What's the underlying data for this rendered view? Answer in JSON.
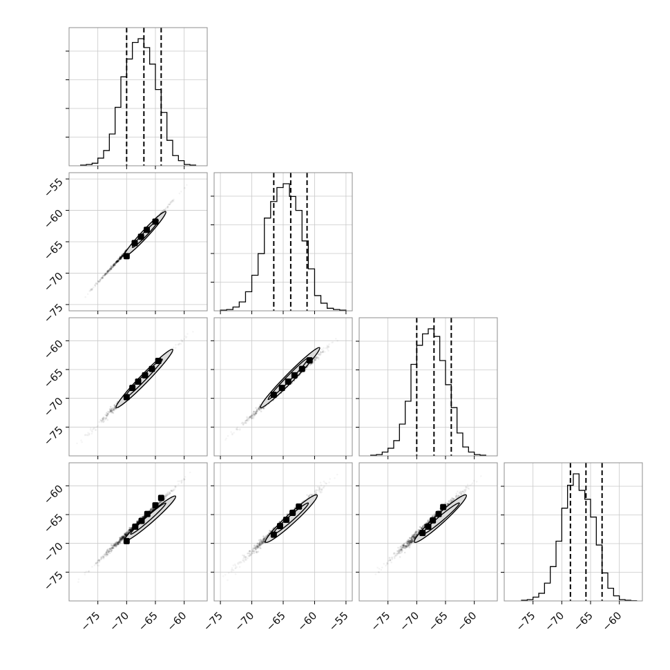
{
  "chart_data": {
    "type": "corner",
    "n_params": 4,
    "grid": true,
    "quantile_lines": "dashed",
    "params": [
      {
        "name": "",
        "range": [
          -80,
          -56
        ],
        "ticks": [
          -75,
          -70,
          -65,
          -60
        ],
        "tick_labels": [
          "−75",
          "−70",
          "−65",
          "−60"
        ],
        "quantiles": [
          -70.0,
          -67.0,
          -64.0
        ],
        "hist": {
          "edges": [
            -78,
            -77,
            -76,
            -75,
            -74,
            -73,
            -72,
            -71,
            -70,
            -69,
            -68,
            -67,
            -66,
            -65,
            -64,
            -63,
            -62,
            -61,
            -60,
            -59,
            -58
          ],
          "counts": [
            0.005,
            0.01,
            0.02,
            0.06,
            0.12,
            0.25,
            0.46,
            0.7,
            0.84,
            0.97,
            1.0,
            0.93,
            0.8,
            0.6,
            0.42,
            0.2,
            0.08,
            0.04,
            0.01,
            0.005
          ]
        }
      },
      {
        "name": "",
        "range": [
          -76,
          -54
        ],
        "ticks": [
          -75,
          -70,
          -65,
          -60,
          -55
        ],
        "tick_labels": [
          "−75",
          "−70",
          "−65",
          "−60",
          "−55"
        ],
        "quantiles": [
          -66.5,
          -63.8,
          -61.2
        ],
        "hist": {
          "edges": [
            -75,
            -74,
            -73,
            -72,
            -71,
            -70,
            -69,
            -68,
            -67,
            -66,
            -65,
            -64,
            -63,
            -62,
            -61,
            -60,
            -59,
            -58,
            -57,
            -56,
            -55
          ],
          "counts": [
            0.005,
            0.01,
            0.03,
            0.07,
            0.15,
            0.28,
            0.45,
            0.73,
            0.86,
            0.97,
            1.0,
            0.9,
            0.79,
            0.55,
            0.33,
            0.12,
            0.06,
            0.02,
            0.01,
            0.005
          ]
        }
      },
      {
        "name": "",
        "range": [
          -80,
          -56
        ],
        "ticks": [
          -75,
          -70,
          -65,
          -60
        ],
        "tick_labels": [
          "−75",
          "−70",
          "−65",
          "−60"
        ],
        "quantiles": [
          -70.0,
          -67.0,
          -64.0
        ],
        "hist": {
          "edges": [
            -78,
            -77,
            -76,
            -75,
            -74,
            -73,
            -72,
            -71,
            -70,
            -69,
            -68,
            -67,
            -66,
            -65,
            -64,
            -63,
            -62,
            -61,
            -60,
            -59,
            -58
          ],
          "counts": [
            0.005,
            0.01,
            0.03,
            0.06,
            0.12,
            0.25,
            0.43,
            0.72,
            0.87,
            0.96,
            1.0,
            0.94,
            0.75,
            0.56,
            0.38,
            0.18,
            0.07,
            0.03,
            0.01,
            0.005
          ]
        }
      },
      {
        "name": "",
        "range": [
          -80,
          -56
        ],
        "ticks": [
          -75,
          -70,
          -65,
          -60
        ],
        "tick_labels": [
          "−75",
          "−70",
          "−65",
          "−60"
        ],
        "quantiles": [
          -68.5,
          -65.8,
          -63.0
        ],
        "hist": {
          "edges": [
            -77,
            -76,
            -75,
            -74,
            -73,
            -72,
            -71,
            -70,
            -69,
            -68,
            -67,
            -66,
            -65,
            -64,
            -63,
            -62,
            -61,
            -60,
            -59,
            -58,
            -57
          ],
          "counts": [
            0.005,
            0.01,
            0.03,
            0.06,
            0.14,
            0.27,
            0.47,
            0.73,
            0.91,
            1.0,
            0.87,
            0.8,
            0.66,
            0.44,
            0.22,
            0.1,
            0.04,
            0.01,
            0.005,
            0.002
          ]
        }
      }
    ],
    "pairs": [
      {
        "row": 1,
        "col": 0,
        "start": [
          -79,
          -75.5
        ],
        "end": [
          -59,
          -55.5
        ],
        "width": 0.55,
        "outer": [
          [
            -70.5,
            -67.4
          ],
          [
            -63.2,
            -60.2
          ]
        ],
        "inner": [
          [
            -69,
            -65.9
          ],
          [
            -64.5,
            -61.6
          ]
        ],
        "points": [
          [
            -70,
            -67.3
          ],
          [
            -68.6,
            -65.2
          ],
          [
            -67.5,
            -64.2
          ],
          [
            -66.5,
            -63.1
          ],
          [
            -65,
            -61.8
          ]
        ]
      },
      {
        "row": 2,
        "col": 0,
        "start": [
          -78.5,
          -78
        ],
        "end": [
          -58.5,
          -58.2
        ],
        "width": 1.4,
        "outer": [
          [
            -71.8,
            -71.6
          ],
          [
            -62,
            -61.5
          ]
        ],
        "inner": [
          [
            -70.4,
            -70
          ],
          [
            -63.8,
            -63.2
          ]
        ],
        "points": [
          [
            -70,
            -69.8
          ],
          [
            -69,
            -68.2
          ],
          [
            -68,
            -67.1
          ],
          [
            -66.8,
            -66
          ],
          [
            -65.6,
            -64.9
          ],
          [
            -64.5,
            -63.5
          ]
        ]
      },
      {
        "row": 2,
        "col": 1,
        "start": [
          -75,
          -78
        ],
        "end": [
          -55,
          -58.2
        ],
        "width": 1.4,
        "outer": [
          [
            -68.6,
            -71.6
          ],
          [
            -59.2,
            -61.2
          ]
        ],
        "inner": [
          [
            -67.4,
            -70.2
          ],
          [
            -61,
            -63
          ]
        ],
        "points": [
          [
            -66.5,
            -69.4
          ],
          [
            -65.2,
            -68.2
          ],
          [
            -64.2,
            -67.1
          ],
          [
            -63.2,
            -66
          ],
          [
            -62,
            -64.9
          ],
          [
            -60.8,
            -63.4
          ]
        ]
      },
      {
        "row": 3,
        "col": 0,
        "start": [
          -78.5,
          -76.6
        ],
        "end": [
          -58.5,
          -57.3
        ],
        "width": 1.2,
        "outer": [
          [
            -70.4,
            -69.6
          ],
          [
            -61.5,
            -61.8
          ]
        ],
        "inner": [
          [
            -69.3,
            -68.4
          ],
          [
            -63.2,
            -63
          ]
        ],
        "points": [
          [
            -70,
            -69.6
          ],
          [
            -68.5,
            -67.1
          ],
          [
            -67.4,
            -66.1
          ],
          [
            -66.4,
            -64.9
          ],
          [
            -65,
            -63.4
          ],
          [
            -64,
            -62.1
          ]
        ]
      },
      {
        "row": 3,
        "col": 1,
        "start": [
          -75,
          -76.6
        ],
        "end": [
          -56,
          -57.3
        ],
        "width": 2.0,
        "outer": [
          [
            -67.8,
            -69.8
          ],
          [
            -59.6,
            -61.6
          ]
        ],
        "inner": [
          [
            -66.6,
            -68.4
          ],
          [
            -61,
            -63
          ]
        ],
        "points": [
          [
            -66.5,
            -68.5
          ],
          [
            -65.5,
            -67
          ],
          [
            -64.5,
            -65.9
          ],
          [
            -63.5,
            -64.7
          ],
          [
            -62.5,
            -63.6
          ]
        ]
      },
      {
        "row": 3,
        "col": 2,
        "start": [
          -78.5,
          -76.6
        ],
        "end": [
          -58,
          -57.3
        ],
        "width": 2.0,
        "outer": [
          [
            -70.4,
            -69.8
          ],
          [
            -61.4,
            -61.6
          ]
        ],
        "inner": [
          [
            -69,
            -68.4
          ],
          [
            -62.6,
            -63
          ]
        ],
        "points": [
          [
            -69,
            -68.2
          ],
          [
            -68,
            -67.1
          ],
          [
            -67.2,
            -66
          ],
          [
            -66.2,
            -64.9
          ],
          [
            -65.4,
            -63.7
          ]
        ]
      }
    ]
  }
}
